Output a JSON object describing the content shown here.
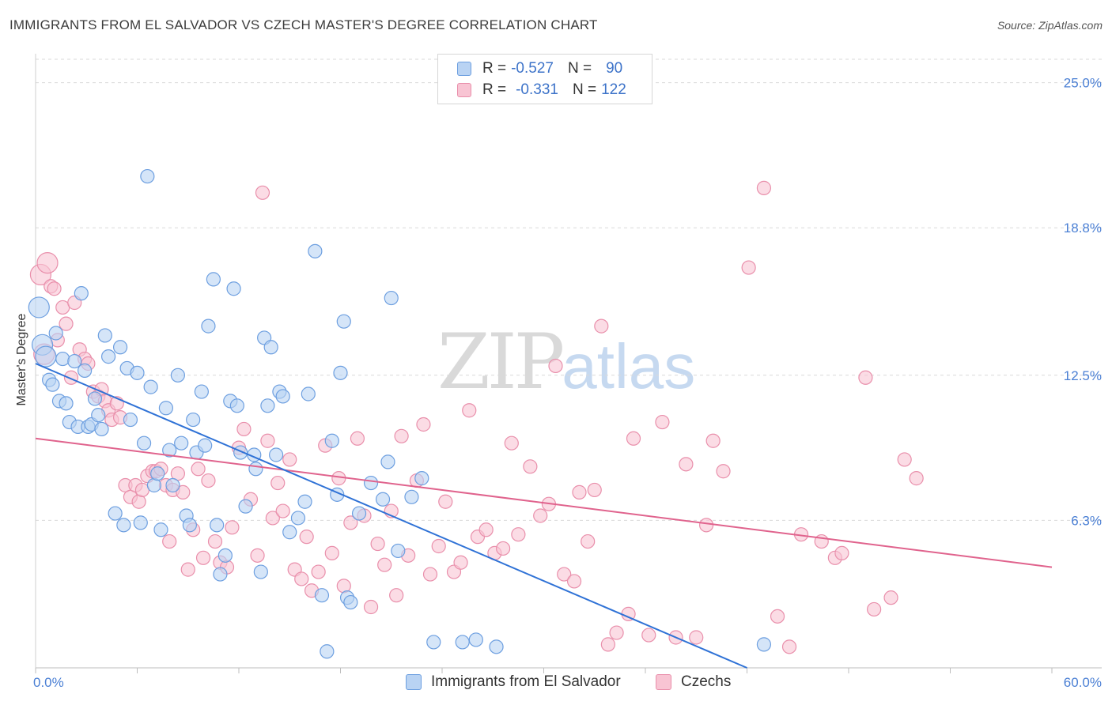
{
  "header": {
    "title": "IMMIGRANTS FROM EL SALVADOR VS CZECH MASTER'S DEGREE CORRELATION CHART",
    "source": "Source: ZipAtlas.com"
  },
  "watermark": {
    "zip": "ZIP",
    "atlas": "atlas"
  },
  "legend_top": {
    "rows": [
      {
        "r_label": "R =",
        "r_value": "-0.527",
        "n_label": "N =",
        "n_value": "90"
      },
      {
        "r_label": "R =",
        "r_value": "-0.331",
        "n_label": "N =",
        "n_value": "122"
      }
    ]
  },
  "legend_bottom": {
    "items": [
      {
        "label": "Immigrants from El Salvador"
      },
      {
        "label": "Czechs"
      }
    ]
  },
  "colors": {
    "blue_fill": "#b9d3f3",
    "blue_stroke": "#6d9fe0",
    "blue_line": "#2f72d6",
    "pink_fill": "#f8c4d3",
    "pink_stroke": "#e98fab",
    "pink_line": "#e0638d",
    "grid": "#d9d9d9",
    "tick_text": "#4a7fd4"
  },
  "chart_data": {
    "type": "scatter",
    "title": "IMMIGRANTS FROM EL SALVADOR VS CZECH MASTER'S DEGREE CORRELATION CHART",
    "ylabel": "Master's Degree",
    "xlabel": "",
    "xlim": [
      0,
      60
    ],
    "ylim": [
      0,
      26.0
    ],
    "x_tick_labels": [
      "0.0%",
      "60.0%"
    ],
    "y_ticks": [
      6.3,
      12.5,
      18.8,
      25.0
    ],
    "y_tick_labels": [
      "6.3%",
      "12.5%",
      "18.8%",
      "25.0%"
    ],
    "grid": "horizontal dashed",
    "legend_placement": "top-center",
    "series": [
      {
        "name": "Immigrants from El Salvador",
        "r": -0.527,
        "n": 90,
        "trend": [
          [
            0,
            13.0
          ],
          [
            42,
            0.0
          ]
        ],
        "points": [
          [
            0.2,
            15.4
          ],
          [
            0.4,
            13.8
          ],
          [
            0.6,
            13.3
          ],
          [
            0.8,
            12.3
          ],
          [
            1.0,
            12.1
          ],
          [
            1.2,
            14.3
          ],
          [
            1.4,
            11.4
          ],
          [
            1.6,
            13.2
          ],
          [
            1.8,
            11.3
          ],
          [
            2.0,
            10.5
          ],
          [
            2.3,
            13.1
          ],
          [
            2.5,
            10.3
          ],
          [
            2.7,
            16.0
          ],
          [
            2.9,
            12.7
          ],
          [
            3.1,
            10.3
          ],
          [
            3.3,
            10.4
          ],
          [
            3.5,
            11.5
          ],
          [
            3.7,
            10.8
          ],
          [
            3.9,
            10.2
          ],
          [
            4.1,
            14.2
          ],
          [
            4.3,
            13.3
          ],
          [
            4.7,
            6.6
          ],
          [
            5.0,
            13.7
          ],
          [
            5.2,
            6.1
          ],
          [
            5.4,
            12.8
          ],
          [
            5.6,
            10.6
          ],
          [
            6.0,
            12.6
          ],
          [
            6.2,
            6.2
          ],
          [
            6.4,
            9.6
          ],
          [
            6.6,
            21.0
          ],
          [
            6.8,
            12.0
          ],
          [
            7.0,
            7.8
          ],
          [
            7.2,
            8.3
          ],
          [
            7.4,
            5.9
          ],
          [
            7.7,
            11.1
          ],
          [
            7.9,
            9.3
          ],
          [
            8.1,
            7.8
          ],
          [
            8.4,
            12.5
          ],
          [
            8.6,
            9.6
          ],
          [
            8.9,
            6.5
          ],
          [
            9.1,
            6.1
          ],
          [
            9.3,
            10.6
          ],
          [
            9.5,
            9.2
          ],
          [
            9.8,
            11.8
          ],
          [
            10.0,
            9.5
          ],
          [
            10.2,
            14.6
          ],
          [
            10.5,
            16.6
          ],
          [
            10.7,
            6.1
          ],
          [
            10.9,
            4.0
          ],
          [
            11.2,
            4.8
          ],
          [
            11.5,
            11.4
          ],
          [
            11.7,
            16.2
          ],
          [
            11.9,
            11.2
          ],
          [
            12.1,
            9.2
          ],
          [
            12.4,
            6.9
          ],
          [
            12.9,
            9.1
          ],
          [
            13.0,
            8.5
          ],
          [
            13.3,
            4.1
          ],
          [
            13.5,
            14.1
          ],
          [
            13.7,
            11.2
          ],
          [
            13.9,
            13.7
          ],
          [
            14.2,
            9.1
          ],
          [
            14.4,
            11.8
          ],
          [
            14.6,
            11.6
          ],
          [
            15.0,
            5.8
          ],
          [
            15.5,
            6.4
          ],
          [
            15.9,
            7.1
          ],
          [
            16.1,
            11.7
          ],
          [
            16.5,
            17.8
          ],
          [
            16.9,
            3.1
          ],
          [
            17.2,
            0.7
          ],
          [
            17.5,
            9.7
          ],
          [
            17.8,
            7.4
          ],
          [
            18.0,
            12.6
          ],
          [
            18.2,
            14.8
          ],
          [
            18.4,
            3.0
          ],
          [
            18.6,
            2.8
          ],
          [
            19.1,
            6.6
          ],
          [
            19.8,
            7.9
          ],
          [
            20.5,
            7.2
          ],
          [
            20.8,
            8.8
          ],
          [
            21.0,
            15.8
          ],
          [
            21.4,
            5.0
          ],
          [
            22.2,
            7.3
          ],
          [
            22.8,
            8.1
          ],
          [
            23.5,
            1.1
          ],
          [
            25.2,
            1.1
          ],
          [
            26.0,
            1.2
          ],
          [
            27.2,
            0.9
          ],
          [
            43.0,
            1.0
          ]
        ]
      },
      {
        "name": "Czechs",
        "r": -0.331,
        "n": 122,
        "trend": [
          [
            0,
            9.8
          ],
          [
            60,
            4.3
          ]
        ],
        "points": [
          [
            0.3,
            16.8
          ],
          [
            0.5,
            13.4
          ],
          [
            0.7,
            17.3
          ],
          [
            0.9,
            16.3
          ],
          [
            1.1,
            16.2
          ],
          [
            1.3,
            14.0
          ],
          [
            1.6,
            15.4
          ],
          [
            1.8,
            14.7
          ],
          [
            2.1,
            12.4
          ],
          [
            2.3,
            15.6
          ],
          [
            2.6,
            13.6
          ],
          [
            2.9,
            13.2
          ],
          [
            3.1,
            13.0
          ],
          [
            3.4,
            11.8
          ],
          [
            3.7,
            11.6
          ],
          [
            3.9,
            11.9
          ],
          [
            4.1,
            11.4
          ],
          [
            4.3,
            11.0
          ],
          [
            4.5,
            10.6
          ],
          [
            4.8,
            11.3
          ],
          [
            5.0,
            10.7
          ],
          [
            5.3,
            7.8
          ],
          [
            5.6,
            7.3
          ],
          [
            5.9,
            7.8
          ],
          [
            6.1,
            7.1
          ],
          [
            6.3,
            7.6
          ],
          [
            6.6,
            8.2
          ],
          [
            6.9,
            8.4
          ],
          [
            7.1,
            8.4
          ],
          [
            7.4,
            8.5
          ],
          [
            7.7,
            7.8
          ],
          [
            7.9,
            5.4
          ],
          [
            8.1,
            7.6
          ],
          [
            8.4,
            8.3
          ],
          [
            8.7,
            7.5
          ],
          [
            9.0,
            4.2
          ],
          [
            9.3,
            5.9
          ],
          [
            9.6,
            8.5
          ],
          [
            9.9,
            4.7
          ],
          [
            10.2,
            8.0
          ],
          [
            10.6,
            5.4
          ],
          [
            10.9,
            4.5
          ],
          [
            11.3,
            4.3
          ],
          [
            11.6,
            6.0
          ],
          [
            12.0,
            9.4
          ],
          [
            12.3,
            10.2
          ],
          [
            12.7,
            7.2
          ],
          [
            13.1,
            4.8
          ],
          [
            13.4,
            20.3
          ],
          [
            13.7,
            9.7
          ],
          [
            14.0,
            6.4
          ],
          [
            14.3,
            7.9
          ],
          [
            14.6,
            6.7
          ],
          [
            15.0,
            8.9
          ],
          [
            15.3,
            4.2
          ],
          [
            15.7,
            3.8
          ],
          [
            16.0,
            5.6
          ],
          [
            16.3,
            3.3
          ],
          [
            16.7,
            4.1
          ],
          [
            17.1,
            9.5
          ],
          [
            17.5,
            4.9
          ],
          [
            17.9,
            8.1
          ],
          [
            18.2,
            3.5
          ],
          [
            18.6,
            6.2
          ],
          [
            19.0,
            9.8
          ],
          [
            19.4,
            6.5
          ],
          [
            19.8,
            2.6
          ],
          [
            20.2,
            5.3
          ],
          [
            20.6,
            4.4
          ],
          [
            21.0,
            6.7
          ],
          [
            21.3,
            3.1
          ],
          [
            21.6,
            9.9
          ],
          [
            22.0,
            4.8
          ],
          [
            22.5,
            8.0
          ],
          [
            22.9,
            10.4
          ],
          [
            23.3,
            4.0
          ],
          [
            23.8,
            5.2
          ],
          [
            24.2,
            7.1
          ],
          [
            24.7,
            4.1
          ],
          [
            25.1,
            4.5
          ],
          [
            25.6,
            11.0
          ],
          [
            26.1,
            5.6
          ],
          [
            26.6,
            5.9
          ],
          [
            27.1,
            4.9
          ],
          [
            27.6,
            5.1
          ],
          [
            28.1,
            9.6
          ],
          [
            28.5,
            5.7
          ],
          [
            29.2,
            8.6
          ],
          [
            29.8,
            6.5
          ],
          [
            30.3,
            7.0
          ],
          [
            30.7,
            12.9
          ],
          [
            31.2,
            4.0
          ],
          [
            31.8,
            3.7
          ],
          [
            32.1,
            7.5
          ],
          [
            32.6,
            5.4
          ],
          [
            33.0,
            7.6
          ],
          [
            33.4,
            14.6
          ],
          [
            33.8,
            1.0
          ],
          [
            34.3,
            1.5
          ],
          [
            35.0,
            2.3
          ],
          [
            35.3,
            9.8
          ],
          [
            36.2,
            1.4
          ],
          [
            37.0,
            10.5
          ],
          [
            37.8,
            1.3
          ],
          [
            38.4,
            8.7
          ],
          [
            39.0,
            1.3
          ],
          [
            39.6,
            6.1
          ],
          [
            40.0,
            9.7
          ],
          [
            40.6,
            8.4
          ],
          [
            42.1,
            17.1
          ],
          [
            43.0,
            20.5
          ],
          [
            43.8,
            2.2
          ],
          [
            44.5,
            0.9
          ],
          [
            45.2,
            5.7
          ],
          [
            46.4,
            5.4
          ],
          [
            47.2,
            4.7
          ],
          [
            47.6,
            4.9
          ],
          [
            49.0,
            12.4
          ],
          [
            49.5,
            2.5
          ],
          [
            50.5,
            3.0
          ],
          [
            51.3,
            8.9
          ],
          [
            52.0,
            8.1
          ]
        ]
      }
    ]
  }
}
